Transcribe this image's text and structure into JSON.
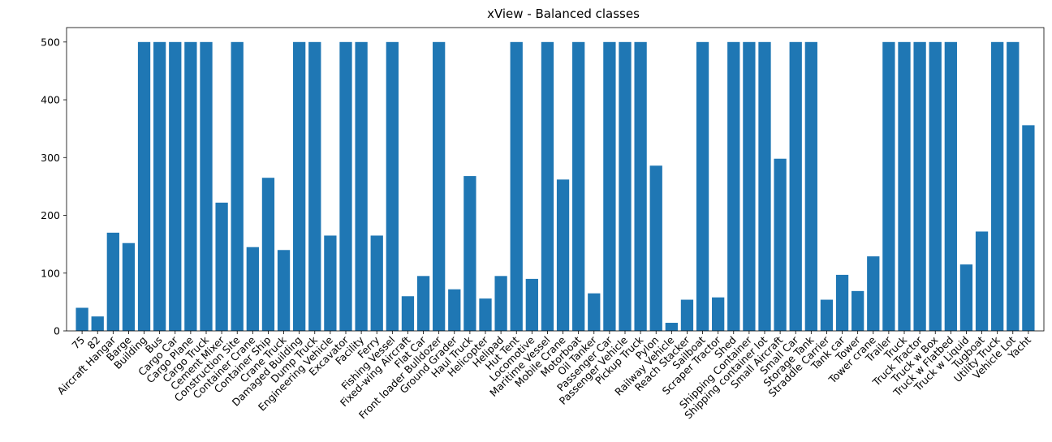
{
  "chart_data": {
    "type": "bar",
    "title": "xView - Balanced classes",
    "xlabel": "",
    "ylabel": "",
    "ylim": [
      0,
      525
    ],
    "yticks": [
      0,
      100,
      200,
      300,
      400,
      500
    ],
    "grid": false,
    "bar_color": "#1f77b4",
    "categories": [
      "75",
      "82",
      "Aircraft Hangar",
      "Barge",
      "Building",
      "Bus",
      "Cargo Car",
      "Cargo Plane",
      "Cargo Truck",
      "Cement Mixer",
      "Construction Site",
      "Container Crane",
      "Container Ship",
      "Crane Truck",
      "Damaged Building",
      "Dump Truck",
      "Engineering Vehicle",
      "Excavator",
      "Facility",
      "Ferry",
      "Fishing Vessel",
      "Fixed-wing Aircraft",
      "Flat Car",
      "Front loader Bulldozer",
      "Ground Grader",
      "Haul Truck",
      "Helicopter",
      "Helipad",
      "Hut Tent",
      "Locomotive",
      "Maritime Vessel",
      "Mobile Crane",
      "Motorboat",
      "Oil Tanker",
      "Passenger Car",
      "Passenger Vehicle",
      "Pickup Truck",
      "Pylon",
      "Railway Vehicle",
      "Reach Stacker",
      "Sailboat",
      "Scraper Tractor",
      "Shed",
      "Shipping Container",
      "Shipping container lot",
      "Small Aircraft",
      "Small Car",
      "Storage Tank",
      "Straddle Carrier",
      "Tank car",
      "Tower",
      "Tower crane",
      "Trailer",
      "Truck",
      "Truck Tractor",
      "Truck w Box",
      "Truck w Flatbed",
      "Truck w Liquid",
      "Tugboat",
      "Utility Truck",
      "Vehicle Lot",
      "Yacht"
    ],
    "values": [
      40,
      25,
      170,
      152,
      500,
      500,
      500,
      500,
      500,
      222,
      500,
      145,
      265,
      140,
      500,
      500,
      165,
      500,
      500,
      165,
      500,
      60,
      95,
      500,
      72,
      268,
      56,
      95,
      500,
      90,
      500,
      262,
      500,
      65,
      500,
      500,
      500,
      286,
      14,
      54,
      500,
      58,
      500,
      500,
      500,
      298,
      500,
      500,
      54,
      97,
      69,
      129,
      500,
      500,
      500,
      500,
      500,
      115,
      172,
      500,
      500,
      356
    ]
  }
}
